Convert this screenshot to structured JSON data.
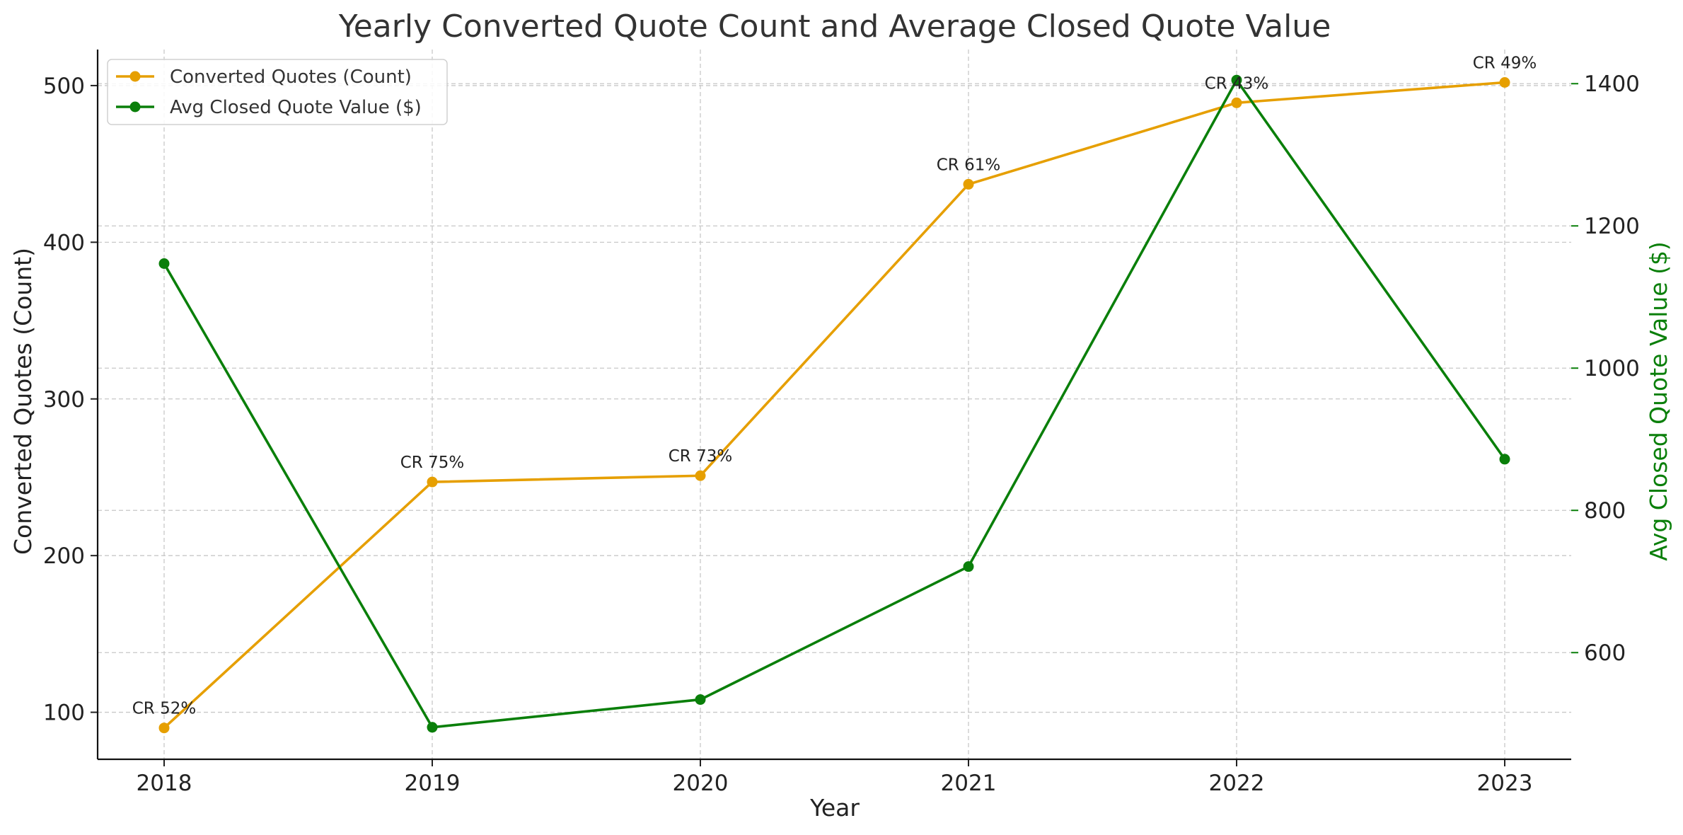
{
  "chart_data": {
    "type": "line",
    "title": "Yearly Converted Quote Count and Average Closed Quote Value",
    "xlabel": "Year",
    "ylabel": "Converted Quotes (Count)",
    "y2label": "Avg Closed Quote Value ($)",
    "x": [
      "2018",
      "2019",
      "2020",
      "2021",
      "2022",
      "2023"
    ],
    "ylim": [
      70,
      523
    ],
    "y2lim": [
      450,
      1448
    ],
    "yticks": [
      "100",
      "200",
      "300",
      "400",
      "500"
    ],
    "y2ticks": [
      "600",
      "800",
      "1000",
      "1200",
      "1400"
    ],
    "grid": true,
    "legend_position": "top-left",
    "series": [
      {
        "name": "Converted Quotes (Count)",
        "axis": "left",
        "color": "#E69F00",
        "values": [
          90,
          247,
          251,
          437,
          489,
          502
        ]
      },
      {
        "name": "Avg Closed Quote Value ($)",
        "axis": "right",
        "color": "#0A7F0A",
        "values": [
          1147,
          495,
          534,
          721,
          1405,
          872
        ]
      }
    ],
    "annotations": [
      "CR 52%",
      "CR 75%",
      "CR 73%",
      "CR 61%",
      "CR 43%",
      "CR 49%"
    ],
    "colors": {
      "left_axis": "#222222",
      "right_axis": "#0A7F0A",
      "grid": "#c8c8c8"
    }
  }
}
